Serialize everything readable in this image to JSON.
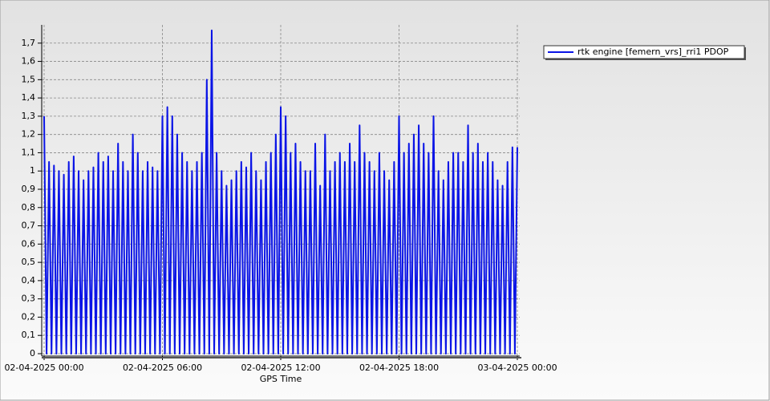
{
  "chart_data": {
    "type": "line",
    "x_label": "GPS Time",
    "x": [
      0,
      0.125,
      0.25,
      0.375,
      0.5,
      0.625,
      0.75,
      0.875,
      1,
      1.125,
      1.25,
      1.375,
      1.5,
      1.625,
      1.75,
      1.875,
      2,
      2.125,
      2.25,
      2.375,
      2.5,
      2.625,
      2.75,
      2.875,
      3,
      3.125,
      3.25,
      3.375,
      3.5,
      3.625,
      3.75,
      3.875,
      4,
      4.125,
      4.25,
      4.375,
      4.5,
      4.625,
      4.75,
      4.875,
      5,
      5.125,
      5.25,
      5.375,
      5.5,
      5.625,
      5.75,
      5.875,
      6,
      6.125,
      6.25,
      6.375,
      6.5,
      6.625,
      6.75,
      6.875,
      7,
      7.125,
      7.25,
      7.375,
      7.5,
      7.625,
      7.75,
      7.875,
      8,
      8.125,
      8.25,
      8.375,
      8.5,
      8.625,
      8.75,
      8.875,
      9,
      9.125,
      9.25,
      9.375,
      9.5,
      9.625,
      9.75,
      9.875,
      10,
      10.125,
      10.25,
      10.375,
      10.5,
      10.625,
      10.75,
      10.875,
      11,
      11.125,
      11.25,
      11.375,
      11.5,
      11.625,
      11.75,
      11.875,
      12,
      12.125,
      12.25,
      12.375,
      12.5,
      12.625,
      12.75,
      12.875,
      13,
      13.125,
      13.25,
      13.375,
      13.5,
      13.625,
      13.75,
      13.875,
      14,
      14.125,
      14.25,
      14.375,
      14.5,
      14.625,
      14.75,
      14.875,
      15,
      15.125,
      15.25,
      15.375,
      15.5,
      15.625,
      15.75,
      15.875,
      16,
      16.125,
      16.25,
      16.375,
      16.5,
      16.625,
      16.75,
      16.875,
      17,
      17.125,
      17.25,
      17.375,
      17.5,
      17.625,
      17.75,
      17.875,
      18,
      18.125,
      18.25,
      18.375,
      18.5,
      18.625,
      18.75,
      18.875,
      19,
      19.125,
      19.25,
      19.375,
      19.5,
      19.625,
      19.75,
      19.875,
      20,
      20.125,
      20.25,
      20.375,
      20.5,
      20.625,
      20.75,
      20.875,
      21,
      21.125,
      21.25,
      21.375,
      21.5,
      21.625,
      21.75,
      21.875,
      22,
      22.125,
      22.25,
      22.375,
      22.5,
      22.625,
      22.75,
      22.875,
      23,
      23.125,
      23.25,
      23.375,
      23.5,
      23.625,
      23.75,
      23.875,
      24
    ],
    "series": [
      {
        "name": "rtk engine [femern_vrs]_rri1 PDOP",
        "color": "#0a14e6",
        "values": [
          1.3,
          0,
          1.05,
          0,
          1.03,
          0,
          1.0,
          0,
          0.98,
          0,
          1.05,
          0,
          1.08,
          0,
          1.0,
          0,
          0.95,
          0,
          1.0,
          0,
          1.02,
          0,
          1.1,
          0,
          1.05,
          0,
          1.08,
          0,
          1.0,
          0,
          1.15,
          0,
          1.05,
          0,
          1.0,
          0,
          1.2,
          0,
          1.1,
          0,
          1.0,
          0,
          1.05,
          0,
          1.02,
          0,
          1.0,
          0,
          1.3,
          0,
          1.35,
          0,
          1.3,
          0,
          1.2,
          0,
          1.1,
          0,
          1.05,
          0,
          1.0,
          0,
          1.05,
          0,
          1.1,
          0,
          1.5,
          0,
          1.77,
          0,
          1.1,
          0,
          1.0,
          0,
          0.92,
          0,
          0.95,
          0,
          1.0,
          0,
          1.05,
          0,
          1.02,
          0,
          1.1,
          0,
          1.0,
          0,
          0.95,
          0,
          1.05,
          0,
          1.1,
          0,
          1.2,
          0,
          1.35,
          0,
          1.3,
          0,
          1.1,
          0,
          1.15,
          0,
          1.05,
          0,
          1.0,
          0,
          1.0,
          0,
          1.15,
          0,
          0.92,
          0,
          1.2,
          0,
          1.0,
          0,
          1.05,
          0,
          1.1,
          0,
          1.05,
          0,
          1.15,
          0,
          1.05,
          0,
          1.25,
          0,
          1.1,
          0,
          1.05,
          0,
          1.0,
          0,
          1.1,
          0,
          1.0,
          0,
          0.95,
          0,
          1.05,
          0,
          1.3,
          0,
          1.1,
          0,
          1.15,
          0,
          1.2,
          0,
          1.25,
          0,
          1.15,
          0,
          1.1,
          0,
          1.3,
          0,
          1.0,
          0,
          0.95,
          0,
          1.05,
          0,
          1.1,
          0,
          1.1,
          0,
          1.05,
          0,
          1.25,
          0,
          1.1,
          0,
          1.15,
          0,
          1.05,
          0,
          1.1,
          0,
          1.05,
          0,
          0.95,
          0,
          0.92,
          0,
          1.05,
          0,
          1.13,
          0,
          1.13
        ]
      }
    ],
    "xlim": [
      0,
      24
    ],
    "xticks": [
      {
        "value": 0,
        "label": "02-04-2025 00:00"
      },
      {
        "value": 6,
        "label": "02-04-2025 06:00"
      },
      {
        "value": 12,
        "label": "02-04-2025 12:00"
      },
      {
        "value": 18,
        "label": "02-04-2025 18:00"
      },
      {
        "value": 24,
        "label": "03-04-2025 00:00"
      }
    ],
    "ylim": [
      0,
      1.8
    ],
    "yticks": [
      0,
      {
        "value": 0.1,
        "label": "0,1"
      },
      {
        "value": 0.2,
        "label": "0,2"
      },
      {
        "value": 0.3,
        "label": "0,3"
      },
      {
        "value": 0.4,
        "label": "0,4"
      },
      {
        "value": 0.5,
        "label": "0,5"
      },
      {
        "value": 0.6,
        "label": "0,6"
      },
      {
        "value": 0.7,
        "label": "0,7"
      },
      {
        "value": 0.8,
        "label": "0,8"
      },
      {
        "value": 0.9,
        "label": "0,9"
      },
      1,
      {
        "value": 1.1,
        "label": "1,1"
      },
      {
        "value": 1.2,
        "label": "1,2"
      },
      {
        "value": 1.3,
        "label": "1,3"
      },
      {
        "value": 1.4,
        "label": "1,4"
      },
      {
        "value": 1.5,
        "label": "1,5"
      },
      {
        "value": 1.6,
        "label": "1,6"
      },
      {
        "value": 1.7,
        "label": "1,7"
      }
    ],
    "grid": true,
    "legend": "top-right"
  }
}
